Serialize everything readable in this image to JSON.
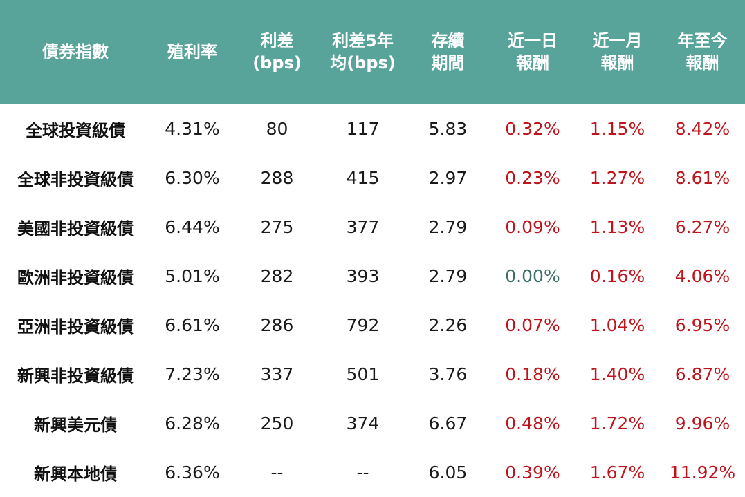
{
  "colors": {
    "header_bg": "#58a39a",
    "header_text": "#ffffff",
    "positive_return": "#c0141c",
    "zero_return": "#3d6e68",
    "body_text": "#1a1a1a"
  },
  "chart_data": {
    "type": "table",
    "columns": [
      "債券指數",
      "殖利率",
      "利差\n(bps)",
      "利差5年\n均(bps)",
      "存續\n期間",
      "近一日\n報酬",
      "近一月\n報酬",
      "年至今\n報酬"
    ],
    "rows": [
      {
        "name": "全球投資級債",
        "yield": "4.31%",
        "spread": "80",
        "spread_5y_avg": "117",
        "duration": "5.83",
        "ret_1d": "0.32%",
        "ret_1m": "1.15%",
        "ret_ytd": "8.42%"
      },
      {
        "name": "全球非投資級債",
        "yield": "6.30%",
        "spread": "288",
        "spread_5y_avg": "415",
        "duration": "2.97",
        "ret_1d": "0.23%",
        "ret_1m": "1.27%",
        "ret_ytd": "8.61%"
      },
      {
        "name": "美國非投資級債",
        "yield": "6.44%",
        "spread": "275",
        "spread_5y_avg": "377",
        "duration": "2.79",
        "ret_1d": "0.09%",
        "ret_1m": "1.13%",
        "ret_ytd": "6.27%"
      },
      {
        "name": "歐洲非投資級債",
        "yield": "5.01%",
        "spread": "282",
        "spread_5y_avg": "393",
        "duration": "2.79",
        "ret_1d": "0.00%",
        "ret_1m": "0.16%",
        "ret_ytd": "4.06%"
      },
      {
        "name": "亞洲非投資級債",
        "yield": "6.61%",
        "spread": "286",
        "spread_5y_avg": "792",
        "duration": "2.26",
        "ret_1d": "0.07%",
        "ret_1m": "1.04%",
        "ret_ytd": "6.95%"
      },
      {
        "name": "新興非投資級債",
        "yield": "7.23%",
        "spread": "337",
        "spread_5y_avg": "501",
        "duration": "3.76",
        "ret_1d": "0.18%",
        "ret_1m": "1.40%",
        "ret_ytd": "6.87%"
      },
      {
        "name": "新興美元債",
        "yield": "6.28%",
        "spread": "250",
        "spread_5y_avg": "374",
        "duration": "6.67",
        "ret_1d": "0.48%",
        "ret_1m": "1.72%",
        "ret_ytd": "9.96%"
      },
      {
        "name": "新興本地債",
        "yield": "6.36%",
        "spread": "--",
        "spread_5y_avg": "--",
        "duration": "6.05",
        "ret_1d": "0.39%",
        "ret_1m": "1.67%",
        "ret_ytd": "11.92%"
      }
    ]
  }
}
